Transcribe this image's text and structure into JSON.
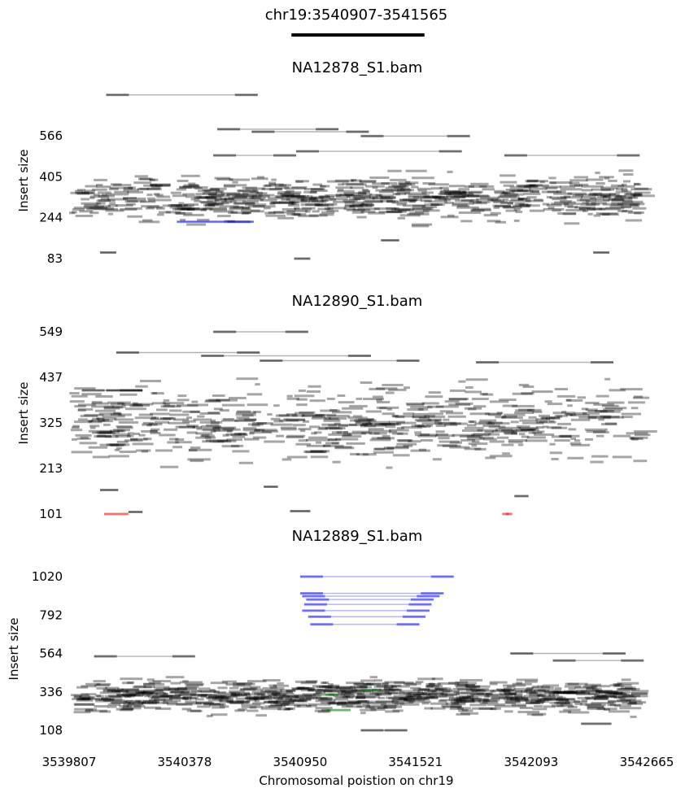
{
  "chart_data": [
    {
      "type": "scatter",
      "title": "chr19:3540907-3541565",
      "region": [
        3540907,
        3541565
      ],
      "xlabel": "Chromosomal poistion on chr19",
      "xlim": [
        3539807,
        3542665
      ],
      "xticks": [
        3539807,
        3540378,
        3540950,
        3541521,
        3542093,
        3542665
      ],
      "xtick_labels": [
        "3539807",
        "3540378",
        "3540950",
        "3541521",
        "3542093",
        "3542665"
      ]
    },
    {
      "type": "scatter",
      "title": "NA12878_S1.bam",
      "ylabel": "Insert size",
      "ylim": [
        83,
        566
      ],
      "yticks": [
        83,
        244,
        405,
        566
      ],
      "dense_band": {
        "y_low": 200,
        "y_high": 440,
        "count": 700,
        "seed": 11
      },
      "pairs": [
        {
          "x1": 3539990,
          "x2": 3540740,
          "y": 727
        },
        {
          "x1": 3540540,
          "x2": 3541140,
          "y": 592
        },
        {
          "x1": 3540710,
          "x2": 3541290,
          "y": 582
        },
        {
          "x1": 3541250,
          "x2": 3541790,
          "y": 565
        },
        {
          "x1": 3540520,
          "x2": 3540930,
          "y": 489
        },
        {
          "x1": 3541960,
          "x2": 3542630,
          "y": 489
        },
        {
          "x1": 3540930,
          "x2": 3541750,
          "y": 505
        },
        {
          "x1": 3540340,
          "x2": 3540560,
          "y": 228,
          "color": "blue"
        },
        {
          "x1": 3540560,
          "x2": 3540720,
          "y": 228,
          "color": "blue"
        },
        {
          "x1": 3539960,
          "x2": 3540040,
          "y": 107
        },
        {
          "x1": 3541350,
          "x2": 3541440,
          "y": 155
        },
        {
          "x1": 3542400,
          "x2": 3542480,
          "y": 107
        },
        {
          "x1": 3540920,
          "x2": 3541000,
          "y": 83
        }
      ]
    },
    {
      "type": "scatter",
      "title": "NA12890_S1.bam",
      "ylabel": "Insert size",
      "ylim": [
        101,
        549
      ],
      "yticks": [
        101,
        213,
        325,
        437,
        549
      ],
      "dense_band": {
        "y_low": 200,
        "y_high": 450,
        "count": 650,
        "seed": 23
      },
      "pairs": [
        {
          "x1": 3540520,
          "x2": 3540990,
          "y": 549
        },
        {
          "x1": 3540040,
          "x2": 3540750,
          "y": 498
        },
        {
          "x1": 3540750,
          "x2": 3541540,
          "y": 478
        },
        {
          "x1": 3540460,
          "x2": 3541300,
          "y": 490
        },
        {
          "x1": 3541820,
          "x2": 3542500,
          "y": 474
        },
        {
          "x1": 3539870,
          "x2": 3540170,
          "y": 405
        },
        {
          "x1": 3539990,
          "x2": 3540170,
          "y": 405
        },
        {
          "x1": 3539980,
          "x2": 3540100,
          "y": 101,
          "color": "red"
        },
        {
          "x1": 3541950,
          "x2": 3542000,
          "y": 101,
          "color": "red"
        },
        {
          "x1": 3540100,
          "x2": 3540170,
          "y": 106
        },
        {
          "x1": 3540900,
          "x2": 3541000,
          "y": 108
        },
        {
          "x1": 3542010,
          "x2": 3542080,
          "y": 145
        },
        {
          "x1": 3540770,
          "x2": 3540840,
          "y": 168
        },
        {
          "x1": 3539960,
          "x2": 3540050,
          "y": 160
        }
      ]
    },
    {
      "type": "scatter",
      "title": "NA12889_S1.bam",
      "ylabel": "Insert size",
      "ylim": [
        108,
        1020
      ],
      "yticks": [
        108,
        336,
        564,
        792,
        1020
      ],
      "dense_band": {
        "y_low": 180,
        "y_high": 450,
        "count": 800,
        "seed": 37
      },
      "pairs": [
        {
          "x1": 3540950,
          "x2": 3541710,
          "y": 1020,
          "color": "blue"
        },
        {
          "x1": 3540950,
          "x2": 3541660,
          "y": 921,
          "color": "blue"
        },
        {
          "x1": 3540960,
          "x2": 3541640,
          "y": 904,
          "color": "blue"
        },
        {
          "x1": 3540980,
          "x2": 3541610,
          "y": 884,
          "color": "blue"
        },
        {
          "x1": 3540970,
          "x2": 3541600,
          "y": 855,
          "color": "blue"
        },
        {
          "x1": 3540960,
          "x2": 3541590,
          "y": 818,
          "color": "blue"
        },
        {
          "x1": 3540990,
          "x2": 3541570,
          "y": 782,
          "color": "blue"
        },
        {
          "x1": 3541000,
          "x2": 3541540,
          "y": 737,
          "color": "blue"
        },
        {
          "x1": 3541250,
          "x2": 3541350,
          "y": 348,
          "color": "green"
        },
        {
          "x1": 3541050,
          "x2": 3541140,
          "y": 320,
          "color": "green"
        },
        {
          "x1": 3541080,
          "x2": 3541200,
          "y": 228,
          "color": "green"
        },
        {
          "x1": 3539930,
          "x2": 3540430,
          "y": 547
        },
        {
          "x1": 3541990,
          "x2": 3542560,
          "y": 564
        },
        {
          "x1": 3542200,
          "x2": 3542650,
          "y": 522
        },
        {
          "x1": 3541250,
          "x2": 3541480,
          "y": 108
        },
        {
          "x1": 3542340,
          "x2": 3542490,
          "y": 147
        }
      ]
    }
  ]
}
